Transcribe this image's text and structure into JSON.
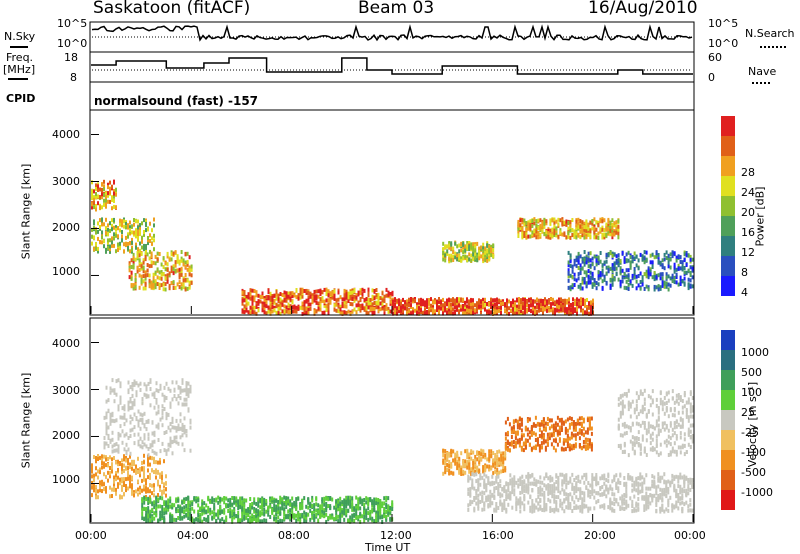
{
  "header": {
    "station": "Saskatoon (fitACF)",
    "beam": "Beam 03",
    "date": "16/Aug/2010"
  },
  "panels": {
    "nsky_label": "N.Sky",
    "nsky_ticks": [
      "10^5",
      "10^0"
    ],
    "nsearch_label": "N.Search",
    "freq_label_1": "Freq.",
    "freq_label_2": "[MHz]",
    "freq_ticks": [
      "18",
      "8"
    ],
    "nave_ticks": [
      "60",
      "0"
    ],
    "nave_label": "Nave",
    "cpid_label": "CPID",
    "cpid_text": "normalsound (fast) -157"
  },
  "axes": {
    "ylabel": "Slant Range [km]",
    "xlabel": "Time UT",
    "y_ticks": [
      "4000",
      "3000",
      "2000",
      "1000"
    ],
    "x_ticks": [
      "00:00",
      "04:00",
      "08:00",
      "12:00",
      "16:00",
      "20:00",
      "00:00"
    ]
  },
  "colorbars": {
    "power_label": "Power [dB]",
    "power_ticks": [
      "28",
      "24",
      "20",
      "16",
      "12",
      "8",
      "4"
    ],
    "power_colors": [
      "#1a1aff",
      "#2a4fbf",
      "#2f7f7f",
      "#4fa05a",
      "#8fc030",
      "#e0e020",
      "#f0a020",
      "#e06018",
      "#e02020"
    ],
    "velocity_label": "Velocity [m s⁻¹]",
    "velocity_ticks": [
      "1000",
      "500",
      "100",
      "25",
      "-25",
      "-100",
      "-500",
      "-1000"
    ],
    "velocity_colors": [
      "#1a3fbf",
      "#2a6f7f",
      "#3f9f5a",
      "#5fcf3a",
      "#c8c8c0",
      "#f0c060",
      "#f09020",
      "#e06018",
      "#e01818"
    ]
  },
  "chart_data": [
    {
      "type": "heatmap",
      "title": "Power",
      "x_range": [
        "00:00",
        "00:00"
      ],
      "ylim": [
        180,
        4500
      ],
      "colorbar_label": "Power [dB]",
      "colorbar_range": [
        0,
        32
      ],
      "regions": [
        {
          "t": [
            0.0,
            1.0
          ],
          "range": [
            2400,
            3000
          ],
          "power": 24
        },
        {
          "t": [
            0.0,
            2.5
          ],
          "range": [
            1500,
            2200
          ],
          "power": 18
        },
        {
          "t": [
            1.5,
            4.0
          ],
          "range": [
            700,
            1500
          ],
          "power": 22
        },
        {
          "t": [
            6.0,
            12.0
          ],
          "range": [
            180,
            700
          ],
          "power": 26
        },
        {
          "t": [
            12.0,
            20.0
          ],
          "range": [
            180,
            500
          ],
          "power": 28
        },
        {
          "t": [
            14.0,
            16.0
          ],
          "range": [
            1300,
            1700
          ],
          "power": 18
        },
        {
          "t": [
            17.0,
            21.0
          ],
          "range": [
            1800,
            2200
          ],
          "power": 22
        },
        {
          "t": [
            19.0,
            24.0
          ],
          "range": [
            700,
            1500
          ],
          "power": 8
        }
      ]
    },
    {
      "type": "heatmap",
      "title": "Velocity",
      "x_range": [
        "00:00",
        "00:00"
      ],
      "ylim": [
        180,
        4500
      ],
      "colorbar_label": "Velocity [m s⁻¹]",
      "regions": [
        {
          "t": [
            0.0,
            3.0
          ],
          "range": [
            700,
            1600
          ],
          "velocity": -100
        },
        {
          "t": [
            0.5,
            4.0
          ],
          "range": [
            1600,
            3200
          ],
          "velocity": 0
        },
        {
          "t": [
            2.0,
            12.0
          ],
          "range": [
            180,
            700
          ],
          "velocity": 100
        },
        {
          "t": [
            14.0,
            16.5
          ],
          "range": [
            1200,
            1700
          ],
          "velocity": -100
        },
        {
          "t": [
            16.5,
            20.0
          ],
          "range": [
            1700,
            2400
          ],
          "velocity": -500
        },
        {
          "t": [
            15.0,
            24.0
          ],
          "range": [
            400,
            1200
          ],
          "velocity": 0
        },
        {
          "t": [
            21.0,
            24.0
          ],
          "range": [
            1600,
            3000
          ],
          "velocity": 0
        }
      ]
    }
  ]
}
